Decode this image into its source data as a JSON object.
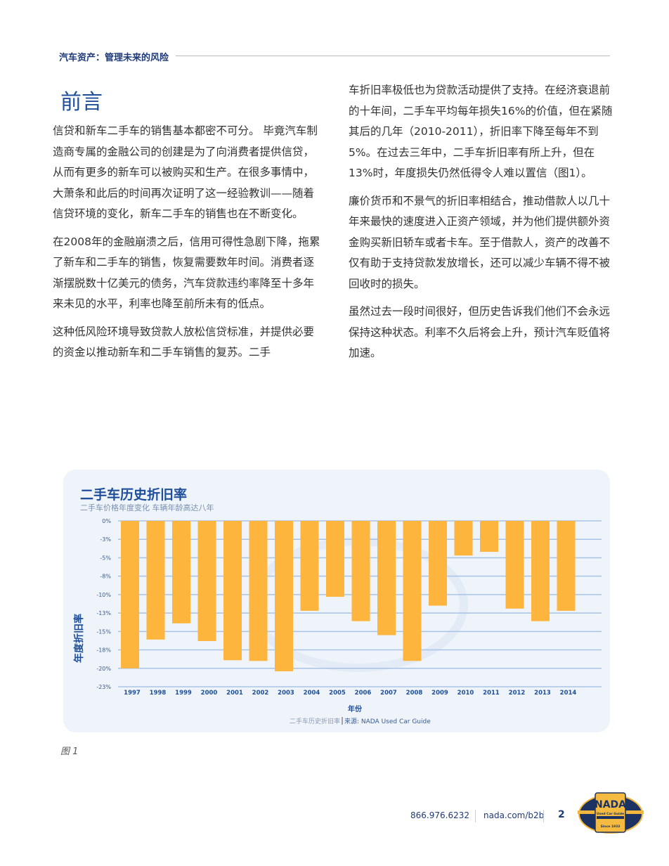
{
  "header": {
    "title": "汽车资产：管理未来的风险"
  },
  "section_title": "前言",
  "left_paragraphs": [
    "信贷和新车二手车的销售基本都密不可分。 毕竟汽车制造商专属的金融公司的创建是为了向消费者提供信贷，从而有更多的新车可以被购买和生产。在很多事情中，大萧条和此后的时间再次证明了这一经验教训——随着信贷环境的变化，新车二手车的销售也在不断变化。",
    "在2008年的金融崩溃之后，信用可得性急剧下降，拖累了新车和二手车的销售，恢复需要数年时间。消费者逐渐摆脱数十亿美元的债务，汽车贷款违约率降至十多年来未见的水平，利率也降至前所未有的低点。",
    "这种低风险环境导致贷款人放松信贷标准，并提供必要的资金以推动新车和二手车销售的复苏。二手"
  ],
  "right_paragraphs": [
    "车折旧率极低也为贷款活动提供了支持。在经济衰退前的十年间，二手车平均每年损失16%的价值，但在紧随其后的几年（2010-2011），折旧率下降至每年不到5%。在过去三年中，二手车折旧率有所上升，但在13%时，年度损失仍然低得令人难以置信（图1）。",
    "廉价货币和不景气的折旧率相结合，推动借款人以几十年来最快的速度进入正资产领域，并为他们提供额外资金购买新旧轿车或者卡车。至于借款人，资产的改善不仅有助于支持贷款发放增长，还可以减少车辆不得不被回收时的损失。",
    "虽然过去一段时间很好，但历史告诉我们他们不会永远保持这种状态。利率不久后将会上升，预计汽车贬值将加速。"
  ],
  "chart_data": {
    "type": "bar",
    "title": "二手车历史折旧率",
    "subtitle": "二手车价格年度变化 车辆年龄高达八年",
    "xlabel": "年份",
    "ylabel": "年度折旧率",
    "categories": [
      "1997",
      "1998",
      "1999",
      "2000",
      "2001",
      "2002",
      "2003",
      "2004",
      "2005",
      "2006",
      "2007",
      "2008",
      "2009",
      "2010",
      "2011",
      "2012",
      "2013",
      "2014"
    ],
    "values": [
      -20.0,
      -16.1,
      -13.9,
      -16.3,
      -18.9,
      -19.0,
      -20.4,
      -12.2,
      -10.3,
      -13.6,
      -15.5,
      -19.0,
      -11.5,
      -4.7,
      -4.2,
      -11.9,
      -13.6,
      -12.2
    ],
    "ylim": [
      -22.5,
      0
    ],
    "yticks": [
      0,
      -2.5,
      -5,
      -7.5,
      -10,
      -12.5,
      -15,
      -17.5,
      -20,
      -22.5
    ],
    "ytick_labels": [
      "0%",
      "-3%",
      "-5%",
      "-8%",
      "-10%",
      "-13%",
      "-15%",
      "-18%",
      "-20%",
      "-23%"
    ],
    "grid": true,
    "bar_color": "#fdb53d",
    "source_prefix": "二手车历史折旧率",
    "source": "来源: NADA Used Car Guide"
  },
  "figure_caption": "图 1",
  "footer": {
    "phone": "866.976.6232",
    "url": "nada.com/b2b",
    "page": "2",
    "logo": {
      "brand": "NADA",
      "line": "Used Car Guide",
      "since": "Since 1933"
    }
  }
}
